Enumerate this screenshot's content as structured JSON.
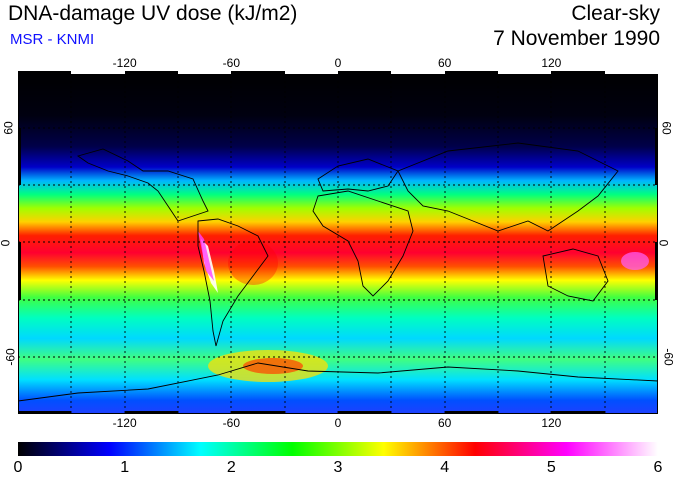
{
  "header": {
    "title": "DNA-damage UV dose (kJ/m2)",
    "credit": "MSR - KNMI",
    "condition": "Clear-sky",
    "date": "7 November 1990"
  },
  "map": {
    "lon_ticks": [
      "-120",
      "-60",
      "0",
      "60",
      "120"
    ],
    "lon_values": [
      -120,
      -60,
      0,
      60,
      120
    ],
    "lat_ticks": [
      "60",
      "0",
      "-60"
    ],
    "lat_values": [
      60,
      0,
      -60
    ],
    "lat_range": [
      -90,
      90
    ],
    "lon_range": [
      -180,
      180
    ],
    "gridlines": true
  },
  "colorbar": {
    "labels": [
      "0",
      "1",
      "2",
      "3",
      "4",
      "5",
      "6"
    ],
    "min": 0,
    "max": 6,
    "stops": [
      "#000000",
      "#0000ff",
      "#00ffff",
      "#00ff00",
      "#ffff00",
      "#ff0000",
      "#ff00ff",
      "#ffffff"
    ]
  }
}
